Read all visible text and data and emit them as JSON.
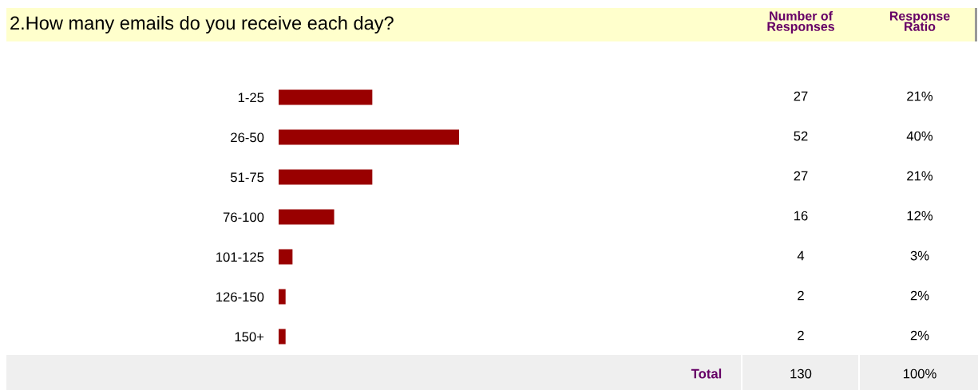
{
  "chart_data": {
    "type": "bar",
    "orientation": "horizontal",
    "title": "2.How many emails do you receive each day?",
    "categories": [
      "1-25",
      "26-50",
      "51-75",
      "76-100",
      "101-125",
      "126-150",
      "150+"
    ],
    "values": [
      27,
      52,
      27,
      16,
      4,
      2,
      2
    ],
    "color": "#990000",
    "data_labels": true,
    "annotations": [
      "Number of\nResponses",
      "Response\nRatio",
      "Total",
      "130",
      "100%",
      "21%",
      "40%",
      "21%",
      "12%",
      "3%",
      "2%",
      "2%"
    ]
  }
}
